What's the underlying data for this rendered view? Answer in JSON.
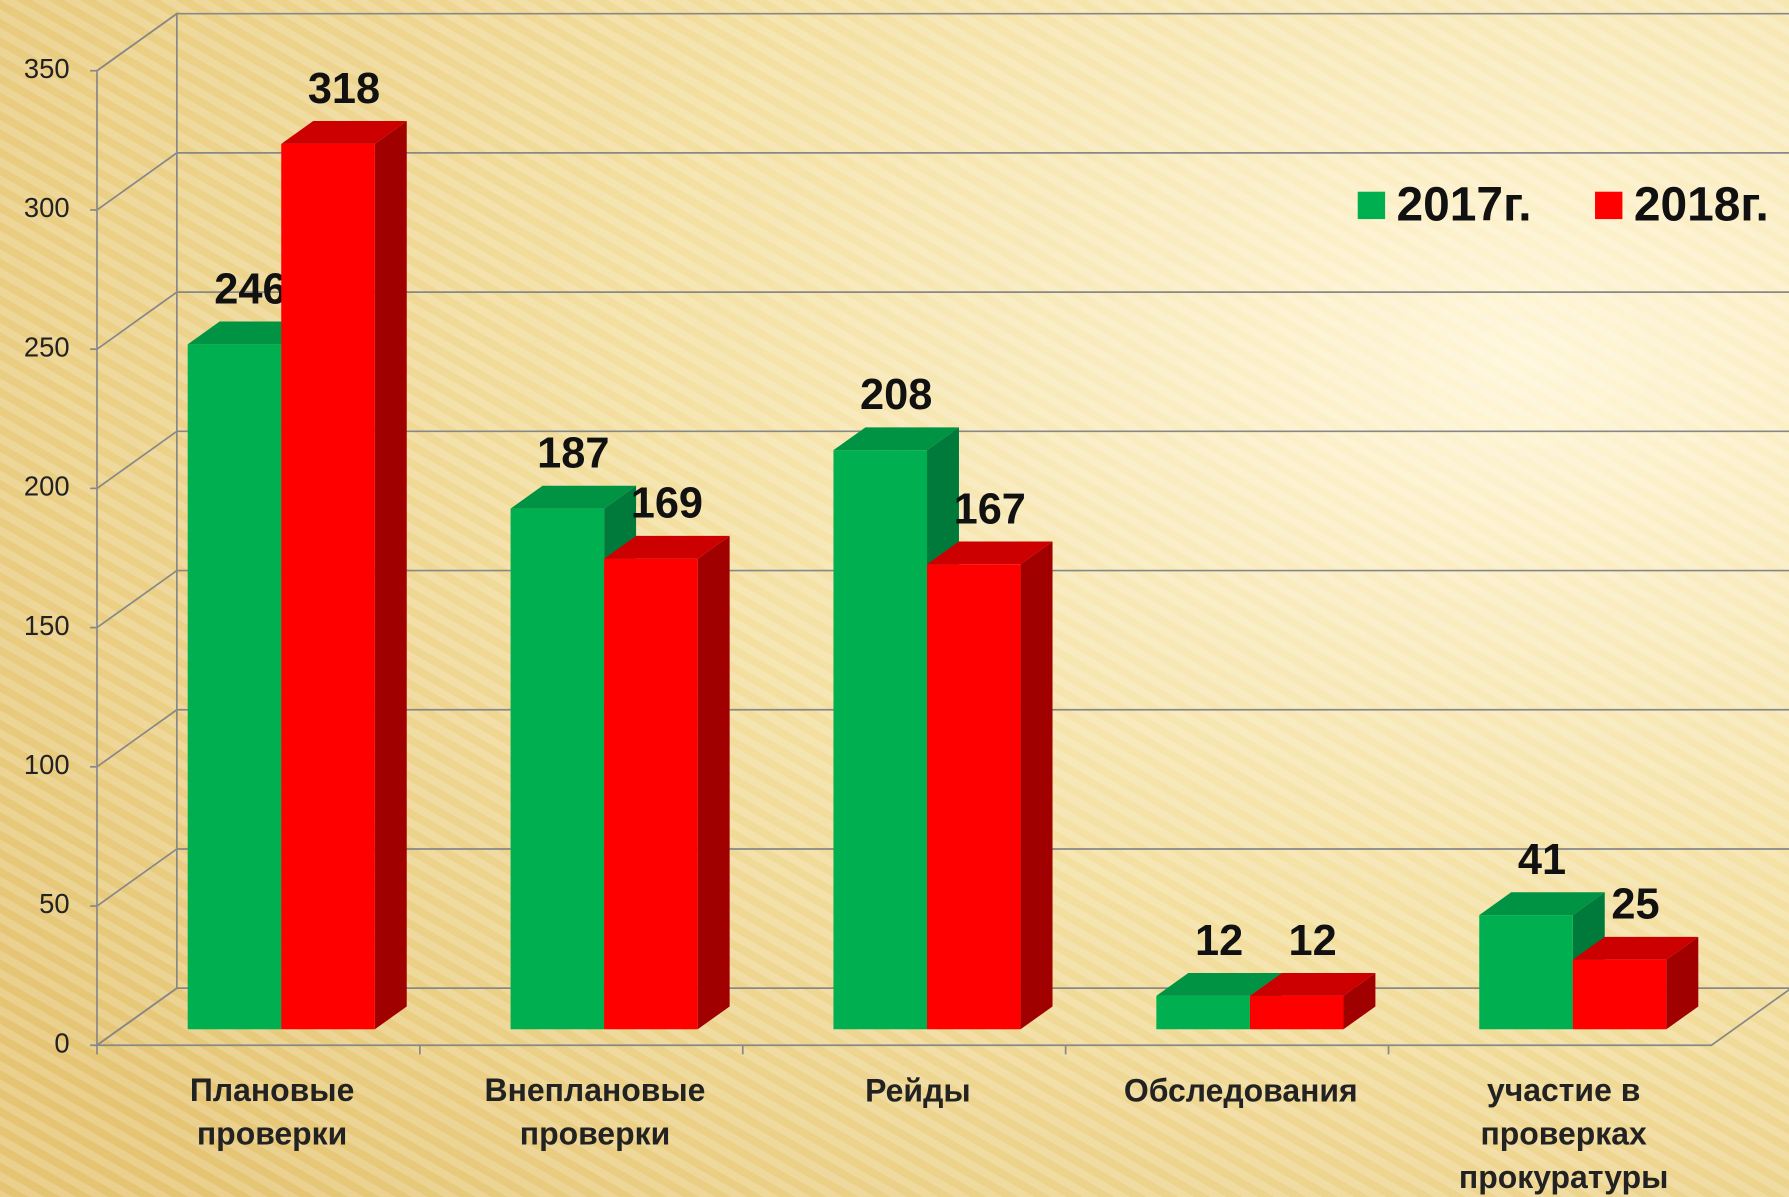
{
  "chart_data": {
    "type": "bar3d",
    "categories": [
      "Плановые\nпроверки",
      "Внеплановые\nпроверки",
      "Рейды",
      "Обследования",
      "участие в\nпроверках\nпрокуратуры"
    ],
    "series": [
      {
        "name": "2017г.",
        "color": "#00b050",
        "values": [
          246,
          187,
          208,
          12,
          41
        ]
      },
      {
        "name": "2018г.",
        "color": "#ff0000",
        "values": [
          318,
          169,
          167,
          12,
          25
        ]
      }
    ],
    "ylim": [
      0,
      350
    ],
    "yticks": [
      0,
      50,
      100,
      150,
      200,
      250,
      300,
      350
    ],
    "grid": true,
    "legend": "top-right"
  }
}
